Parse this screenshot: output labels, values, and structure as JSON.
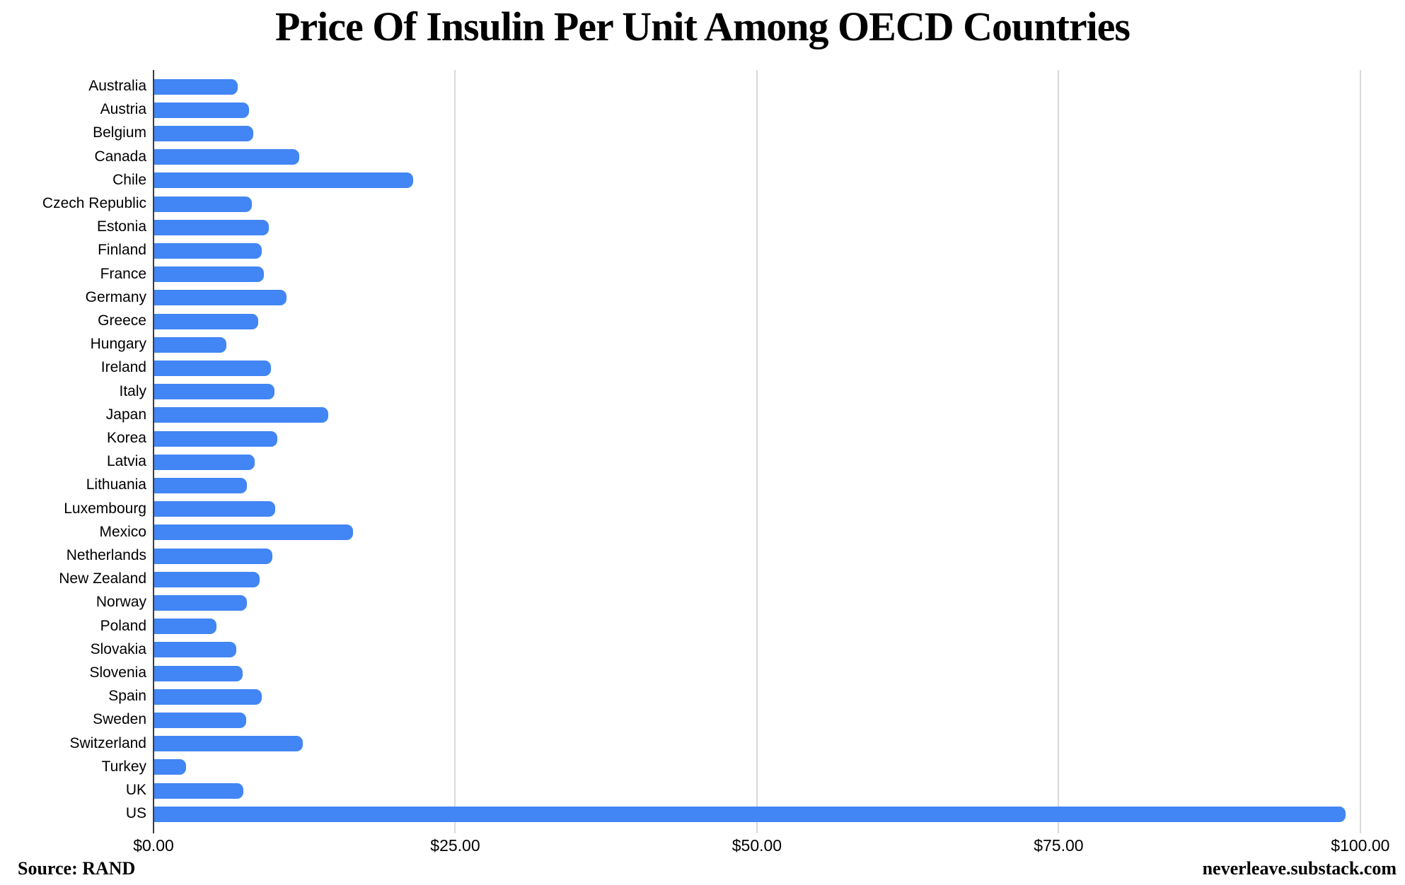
{
  "title": "Price Of Insulin Per Unit Among OECD Countries",
  "source_note": "Source: RAND",
  "credit": "neverleave.substack.com",
  "colors": {
    "bar": "#4285F4",
    "axis_line": "#3c3c3c",
    "gridline": "#d9d9d9",
    "text": "#000000",
    "background": "#ffffff"
  },
  "chart_data": {
    "type": "bar",
    "orientation": "horizontal",
    "title": "Price Of Insulin Per Unit Among OECD Countries",
    "xlabel": "",
    "ylabel": "",
    "unit": "USD per standard unit of insulin",
    "grid": "vertical",
    "legend": false,
    "xlim": [
      0,
      103.7
    ],
    "xticks": [
      {
        "label": "$0.00",
        "value": 0
      },
      {
        "label": "$25.00",
        "value": 25
      },
      {
        "label": "$50.00",
        "value": 50
      },
      {
        "label": "$75.00",
        "value": 75
      },
      {
        "label": "$100.00",
        "value": 100
      }
    ],
    "categories": [
      "Australia",
      "Austria",
      "Belgium",
      "Canada",
      "Chile",
      "Czech Republic",
      "Estonia",
      "Finland",
      "France",
      "Germany",
      "Greece",
      "Hungary",
      "Ireland",
      "Italy",
      "Japan",
      "Korea",
      "Latvia",
      "Lithuania",
      "Luxembourg",
      "Mexico",
      "Netherlands",
      "New Zealand",
      "Norway",
      "Poland",
      "Slovakia",
      "Slovenia",
      "Spain",
      "Sweden",
      "Switzerland",
      "Turkey",
      "UK",
      "US"
    ],
    "values": [
      6.94,
      7.87,
      8.18,
      12.0,
      21.48,
      8.1,
      9.5,
      8.9,
      9.08,
      10.95,
      8.6,
      5.98,
      9.7,
      9.95,
      14.4,
      10.2,
      8.3,
      7.7,
      10.05,
      16.48,
      9.8,
      8.75,
      7.7,
      5.15,
      6.78,
      7.3,
      8.9,
      7.6,
      12.3,
      2.64,
      7.4,
      98.7
    ]
  }
}
